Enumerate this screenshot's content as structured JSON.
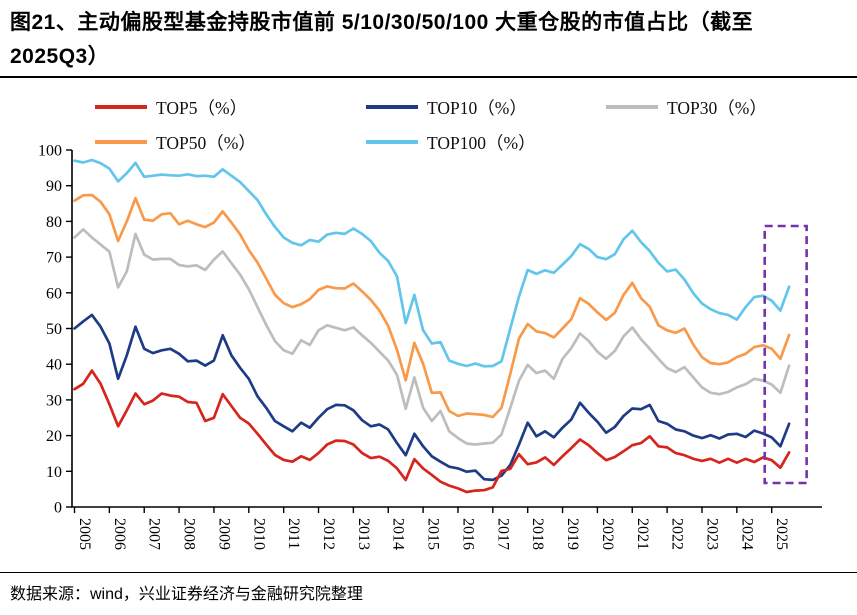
{
  "page": {
    "title_line1": "图21、主动偏股型基金持股市值前 5/10/30/50/100 大重仓股的市值占比（截至",
    "title_line2": "2025Q3）",
    "source_note": "数据来源：wind，兴业证券经济与金融研究院整理"
  },
  "chart_data": {
    "type": "line",
    "title": "主动偏股型基金持股市值前5/10/30/50/100大重仓股的市值占比（截至2025Q3）",
    "xlabel": "",
    "ylabel": "",
    "ylim": [
      0,
      100
    ],
    "y_tick_step": 10,
    "y_tick_labels": [
      "0",
      "10",
      "20",
      "30",
      "40",
      "50",
      "60",
      "70",
      "80",
      "90",
      "100"
    ],
    "x_tick_labels": [
      "2005",
      "2006",
      "2007",
      "2008",
      "2009",
      "2010",
      "2011",
      "2012",
      "2013",
      "2014",
      "2015",
      "2016",
      "2017",
      "2018",
      "2019",
      "2020",
      "2021",
      "2022",
      "2023",
      "2024",
      "2025"
    ],
    "x_frequency": "quarterly",
    "x_range": "2005Q1 - 2025Q3",
    "grid": false,
    "legend_position": "top",
    "annotations": [
      {
        "type": "dashed-box",
        "purpose": "highlight 2025 quarters",
        "x_from": "2025Q1",
        "x_to": "2025Q3",
        "color": "#7533A8"
      }
    ],
    "series": [
      {
        "name": "TOP5（%）",
        "color": "#D6251D",
        "values": [
          33,
          34.5,
          38.2,
          34.5,
          28.8,
          22.6,
          27.1,
          31.8,
          28.8,
          29.8,
          31.8,
          31.2,
          30.9,
          29.4,
          29.2,
          24.1,
          25,
          31.6,
          28.3,
          25,
          23.4,
          20.5,
          17.5,
          14.6,
          13.2,
          12.7,
          14.2,
          13.2,
          15.1,
          17.5,
          18.6,
          18.5,
          17.5,
          15.1,
          13.7,
          14.1,
          12.9,
          10.8,
          7.6,
          13.4,
          10.8,
          9,
          7.1,
          6,
          5.2,
          4.2,
          4.6,
          4.7,
          5.5,
          10.1,
          10.7,
          14.8,
          12,
          12.5,
          13.9,
          11.8,
          14.2,
          16.5,
          18.9,
          17.3,
          15.1,
          13.1,
          14,
          15.6,
          17.3,
          17.9,
          19.8,
          17,
          16.7,
          15.1,
          14.5,
          13.5,
          12.9,
          13.5,
          12.4,
          13.5,
          12.4,
          13.5,
          12.6,
          13.9,
          13.1,
          11,
          15.3
        ]
      },
      {
        "name": "TOP10（%）",
        "color": "#1E3C85",
        "values": [
          50,
          52,
          53.8,
          50.5,
          45.8,
          35.9,
          42.5,
          50.5,
          44.3,
          43.1,
          43.9,
          44.3,
          42.9,
          40.8,
          41,
          39.6,
          41,
          48.1,
          42.5,
          39,
          35.9,
          31,
          27.8,
          24.1,
          22.6,
          21.2,
          23.6,
          22.2,
          25,
          27.4,
          28.6,
          28.5,
          27.1,
          24.3,
          22.6,
          23.1,
          21.7,
          17.9,
          14.5,
          20.5,
          17,
          14.2,
          12.7,
          11.3,
          10.8,
          9.9,
          10.2,
          7.8,
          7.6,
          8.8,
          11.8,
          17.5,
          23.6,
          19.8,
          21.2,
          19.5,
          22.2,
          24.5,
          29.2,
          26.4,
          23.9,
          20.8,
          22.4,
          25.5,
          27.6,
          27.4,
          28.6,
          24.1,
          23.3,
          21.7,
          21.2,
          20,
          19.3,
          20.1,
          19.2,
          20.3,
          20.5,
          19.6,
          21.4,
          20.6,
          19.5,
          17,
          23.3
        ]
      },
      {
        "name": "TOP30（%）",
        "color": "#BDBDBD",
        "values": [
          75.5,
          77.8,
          75.5,
          73.5,
          71.5,
          61.5,
          66,
          76.5,
          70.7,
          69.3,
          69.5,
          69.5,
          67.8,
          67.4,
          67.7,
          66.4,
          69.3,
          71.6,
          68.3,
          65.1,
          61,
          56,
          51,
          46.5,
          43.9,
          42.9,
          46.7,
          45.4,
          49.5,
          50.9,
          50.2,
          49.5,
          50.3,
          48.1,
          46,
          43.5,
          41,
          37,
          27.5,
          36.3,
          27.8,
          24.1,
          26.9,
          21.2,
          19.3,
          17.8,
          17.5,
          17.8,
          18,
          20.3,
          27.8,
          35.4,
          39.8,
          37.5,
          38.2,
          35.9,
          41.5,
          44.5,
          48.6,
          46.5,
          43.5,
          41.5,
          43.7,
          47.8,
          50.3,
          47,
          44.3,
          41.5,
          38.9,
          37.8,
          39.2,
          36.3,
          33.5,
          32,
          31.6,
          32.2,
          33.5,
          34.4,
          35.9,
          35.4,
          34.3,
          32,
          39.6
        ]
      },
      {
        "name": "TOP50（%）",
        "color": "#F9994A",
        "values": [
          85.8,
          87.3,
          87.4,
          85.5,
          82,
          74.5,
          80,
          86.5,
          80.5,
          80.2,
          82,
          82.3,
          79.2,
          80.2,
          79.2,
          78.4,
          79.7,
          82.8,
          79.7,
          76.4,
          72,
          68.5,
          64,
          59.5,
          57.1,
          56,
          56.8,
          58.2,
          60.8,
          61.8,
          61.3,
          61.2,
          62.6,
          60.4,
          58,
          55,
          50.7,
          44,
          35.5,
          46,
          40.1,
          32,
          32.1,
          26.9,
          25.5,
          26.2,
          26,
          25.8,
          25.2,
          27.8,
          37.3,
          47.2,
          51.3,
          49.2,
          48.7,
          47.5,
          50,
          52.6,
          58.5,
          56.9,
          54.5,
          52.4,
          54.4,
          59.4,
          62.8,
          58.5,
          56.1,
          50.9,
          49.5,
          48.8,
          50,
          45.5,
          42,
          40.3,
          40,
          40.5,
          42,
          42.9,
          44.8,
          45.3,
          44.3,
          41.5,
          48.2
        ]
      },
      {
        "name": "TOP100（%）",
        "color": "#62C6EC",
        "values": [
          97,
          96.5,
          97.2,
          96.3,
          94.8,
          91.2,
          93.5,
          96.4,
          92.5,
          92.8,
          93.1,
          92.9,
          92.8,
          93.2,
          92.7,
          92.8,
          92.5,
          94.6,
          92.8,
          91,
          88.5,
          86,
          82,
          78.5,
          75.5,
          74,
          73.3,
          74.8,
          74.3,
          76.3,
          76.8,
          76.5,
          78,
          76.5,
          74.5,
          71.2,
          68.9,
          64.6,
          51.5,
          59.4,
          49.5,
          45.8,
          46.2,
          41,
          40.1,
          39.5,
          40.2,
          39.4,
          39.5,
          40.8,
          50,
          59,
          66.4,
          65.3,
          66.3,
          65.6,
          67.9,
          70.3,
          73.6,
          72.3,
          70,
          69.4,
          70.8,
          75,
          77.4,
          74.2,
          71.7,
          68.4,
          66,
          66.5,
          63.7,
          59.9,
          57,
          55.4,
          54.3,
          53.8,
          52.5,
          56,
          58.8,
          59.2,
          57.8,
          55,
          61.7
        ]
      }
    ]
  }
}
